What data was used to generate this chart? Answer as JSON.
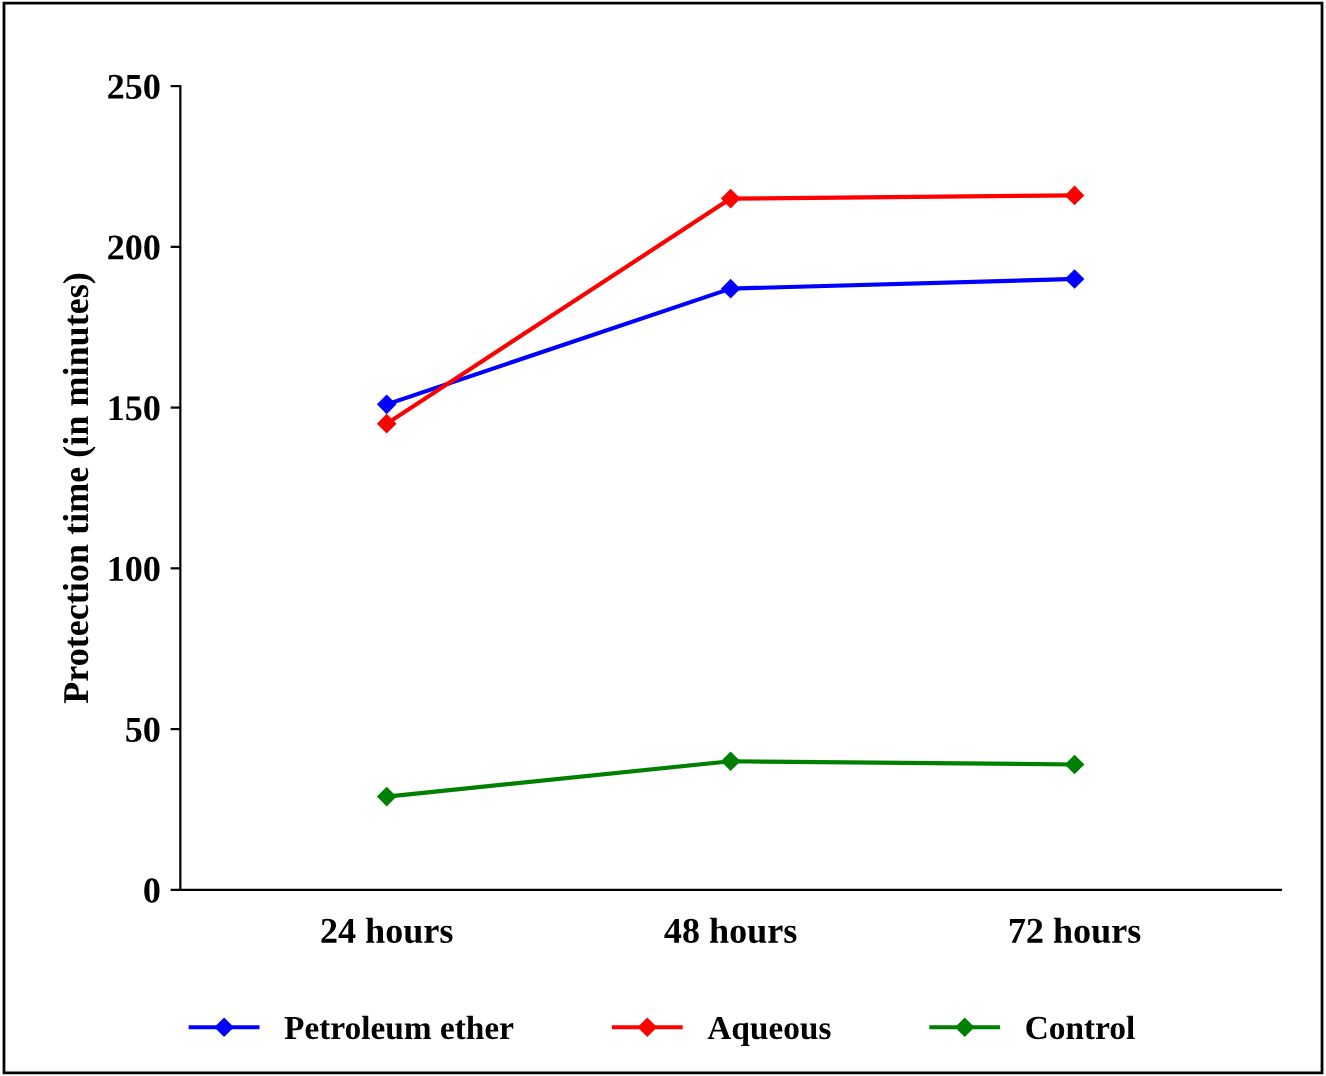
{
  "chart_data": {
    "type": "line",
    "ylabel": "Protection time (in minutes)",
    "categories": [
      "24 hours",
      "48 hours",
      "72 hours"
    ],
    "series": [
      {
        "name": "Petroleum ether",
        "color": "#0000ff",
        "values": [
          151,
          187,
          190
        ]
      },
      {
        "name": "Aqueous",
        "color": "#ff0000",
        "values": [
          145,
          215,
          216
        ]
      },
      {
        "name": "Control",
        "color": "#008000",
        "values": [
          29,
          40,
          39
        ]
      }
    ],
    "ylim": [
      0,
      250
    ],
    "yticks": [
      0,
      50,
      100,
      150,
      200,
      250
    ],
    "grid": false,
    "legend": "bottom",
    "marker": "diamond",
    "line_style": "solid"
  }
}
